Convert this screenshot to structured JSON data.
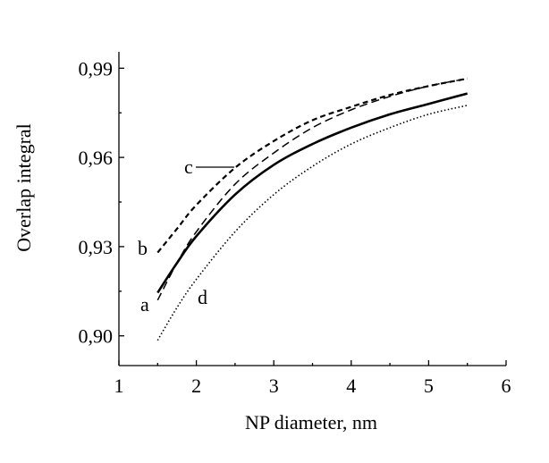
{
  "chart_data": {
    "type": "line",
    "xlabel": "NP diameter, nm",
    "ylabel": "Overlap integral",
    "xlim": [
      1,
      6
    ],
    "ylim": [
      0.89,
      0.9955
    ],
    "x_ticks": [
      {
        "value": 1,
        "label": "1"
      },
      {
        "value": 2,
        "label": "2"
      },
      {
        "value": 3,
        "label": "3"
      },
      {
        "value": 4,
        "label": "4"
      },
      {
        "value": 5,
        "label": "5"
      },
      {
        "value": 6,
        "label": "6"
      }
    ],
    "y_ticks": [
      {
        "value": 0.9,
        "label": "0,90"
      },
      {
        "value": 0.93,
        "label": "0,93"
      },
      {
        "value": 0.96,
        "label": "0,96"
      },
      {
        "value": 0.99,
        "label": "0,99"
      }
    ],
    "y_minor_ticks": [
      0.915,
      0.945,
      0.975
    ],
    "grid": false,
    "series": [
      {
        "name": "a",
        "style": "solid",
        "x": [
          1.5,
          1.75,
          2.0,
          2.5,
          3.0,
          3.5,
          4.0,
          4.5,
          5.0,
          5.5
        ],
        "y": [
          0.9145,
          0.9245,
          0.9335,
          0.9475,
          0.9575,
          0.9645,
          0.97,
          0.9745,
          0.978,
          0.9815
        ]
      },
      {
        "name": "b",
        "style": "dashed",
        "x": [
          1.5,
          1.75,
          2.0,
          2.5,
          3.0,
          3.5,
          4.0,
          4.5,
          5.0,
          5.5
        ],
        "y": [
          0.928,
          0.936,
          0.944,
          0.9565,
          0.9655,
          0.9725,
          0.977,
          0.981,
          0.984,
          0.9865
        ]
      },
      {
        "name": "c",
        "style": "dashed-long",
        "x": [
          1.5,
          1.75,
          2.0,
          2.5,
          3.0,
          3.5,
          4.0,
          4.5,
          5.0,
          5.5
        ],
        "y": [
          0.912,
          0.9245,
          0.935,
          0.951,
          0.9615,
          0.97,
          0.976,
          0.9805,
          0.984,
          0.9865
        ]
      },
      {
        "name": "d",
        "style": "dotted",
        "x": [
          1.5,
          1.75,
          2.0,
          2.5,
          3.0,
          3.5,
          4.0,
          4.5,
          5.0,
          5.5
        ],
        "y": [
          0.8985,
          0.9095,
          0.919,
          0.935,
          0.9475,
          0.957,
          0.9645,
          0.97,
          0.9745,
          0.9775
        ]
      }
    ],
    "labels": [
      {
        "text": "a",
        "series": "a"
      },
      {
        "text": "b",
        "series": "b"
      },
      {
        "text": "c",
        "series": "c"
      },
      {
        "text": "d",
        "series": "d"
      }
    ]
  }
}
